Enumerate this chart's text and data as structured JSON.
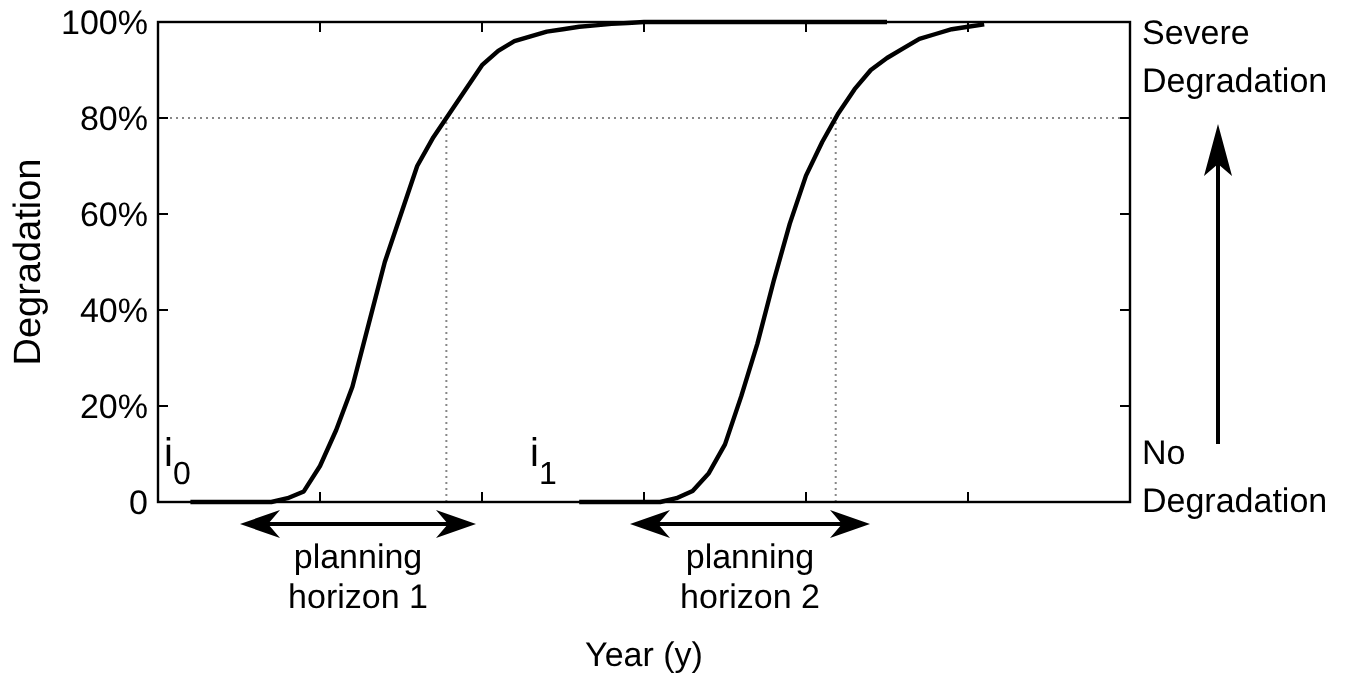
{
  "chart_data": {
    "type": "line",
    "xlabel": "Year (y)",
    "ylabel": "Degradation",
    "categories": [
      null,
      null,
      null,
      null,
      null,
      null,
      null,
      null,
      null,
      null,
      null,
      null,
      null,
      null,
      null,
      null,
      null,
      null,
      null,
      null,
      null,
      null,
      null,
      null,
      null,
      null,
      null,
      null,
      null,
      null,
      null,
      null,
      null,
      null,
      null,
      null,
      null,
      null,
      null,
      null,
      null,
      null,
      null,
      null,
      null,
      null,
      null,
      null,
      null,
      null,
      null,
      null,
      null,
      null,
      null,
      null,
      null,
      null,
      null,
      null,
      null
    ],
    "ylim": [
      0,
      100
    ],
    "yticks": [
      {
        "value": 0,
        "label": "0"
      },
      {
        "value": 20,
        "label": "20%"
      },
      {
        "value": 40,
        "label": "40%"
      },
      {
        "value": 60,
        "label": "60%"
      },
      {
        "value": 80,
        "label": "80%"
      },
      {
        "value": 100,
        "label": "100%"
      }
    ],
    "grid": false,
    "marker": "none",
    "line_style": "solid",
    "series": [
      {
        "color": "#000000",
        "values": [
          null,
          null,
          0,
          0,
          0,
          0,
          0,
          0,
          0.8,
          2.2,
          7.5,
          15,
          24,
          37,
          50,
          60,
          70,
          76,
          81,
          86,
          91,
          94,
          96,
          97,
          98,
          98.5,
          99,
          99.3,
          99.6,
          99.8,
          100,
          100,
          100,
          100,
          100,
          100,
          100,
          100,
          100,
          100,
          100,
          100,
          100,
          100,
          100,
          100,
          null,
          null,
          null,
          null,
          null,
          null,
          null,
          null,
          null,
          null,
          null,
          null,
          null,
          null,
          null
        ]
      },
      {
        "color": "#000000",
        "values": [
          null,
          null,
          null,
          null,
          null,
          null,
          null,
          null,
          null,
          null,
          null,
          null,
          null,
          null,
          null,
          null,
          null,
          null,
          null,
          null,
          null,
          null,
          null,
          null,
          null,
          null,
          0,
          0,
          0,
          0,
          0,
          0,
          0.8,
          2.3,
          6,
          12,
          22,
          33,
          46,
          58,
          68,
          75,
          81,
          86,
          90,
          92.5,
          94.5,
          96.5,
          97.5,
          98.5,
          99,
          99.5,
          null,
          null,
          null,
          null,
          null,
          null,
          null,
          null,
          null
        ]
      }
    ],
    "ref_lines": [
      {
        "axis": "y",
        "value": 80,
        "line_style": "dotted",
        "color": "#888888"
      }
    ],
    "annotations": [
      "i$_{0}$",
      "i$_{1}$",
      "planning horizon 1",
      "planning horizon 2",
      "Severe Degradation",
      "No Degradation"
    ]
  }
}
